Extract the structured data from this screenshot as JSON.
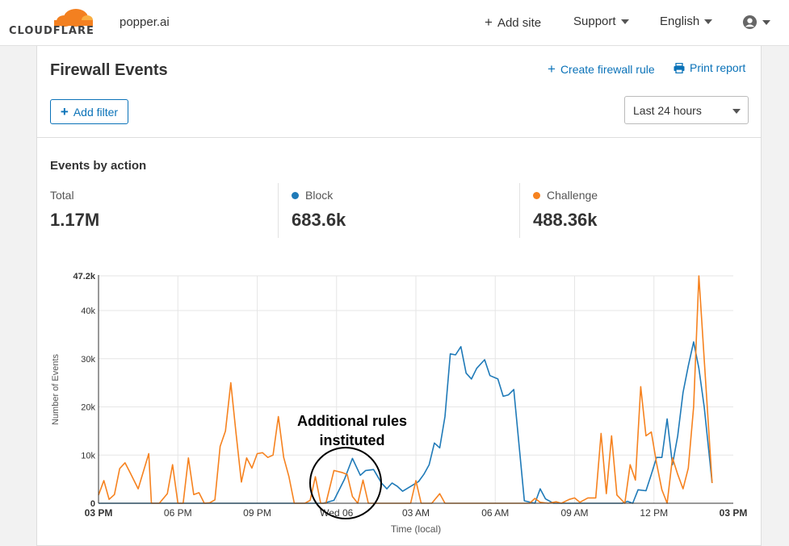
{
  "header": {
    "brand": "CLOUDFLARE",
    "site": "popper.ai",
    "add_site": "Add site",
    "support": "Support",
    "language": "English"
  },
  "page": {
    "title": "Firewall Events",
    "create_rule": "Create firewall rule",
    "print_report": "Print report",
    "add_filter": "Add filter",
    "time_range": "Last 24 hours"
  },
  "stats": {
    "section_title": "Events by action",
    "total_label": "Total",
    "total_value": "1.17M",
    "block_label": "Block",
    "block_value": "683.6k",
    "challenge_label": "Challenge",
    "challenge_value": "488.36k"
  },
  "colors": {
    "block": "#1f7ab8",
    "challenge": "#f6821f",
    "brand_orange": "#f38020"
  },
  "annotation": {
    "line1": "Additional rules",
    "line2": "instituted"
  },
  "chart_data": {
    "type": "line",
    "ylabel": "Number of Events",
    "xlabel": "Time (local)",
    "ylim": [
      0,
      47200
    ],
    "y_ticks": [
      {
        "value": 0,
        "label": "0"
      },
      {
        "value": 10000,
        "label": "10k"
      },
      {
        "value": 20000,
        "label": "20k"
      },
      {
        "value": 30000,
        "label": "30k"
      },
      {
        "value": 40000,
        "label": "40k"
      },
      {
        "value": 47200,
        "label": "47.2k"
      }
    ],
    "x_ticks": [
      "03 PM",
      "06 PM",
      "09 PM",
      "Wed 06",
      "03 AM",
      "06 AM",
      "09 AM",
      "12 PM",
      "03 PM"
    ],
    "series": [
      {
        "name": "Block",
        "points": [
          [
            0,
            0
          ],
          [
            3,
            0
          ],
          [
            6,
            0
          ],
          [
            8.5,
            0
          ],
          [
            8.9,
            600
          ],
          [
            9.3,
            5000
          ],
          [
            9.6,
            9300
          ],
          [
            9.9,
            5800
          ],
          [
            10.1,
            6800
          ],
          [
            10.4,
            7000
          ],
          [
            10.7,
            4200
          ],
          [
            10.9,
            3000
          ],
          [
            11.1,
            4200
          ],
          [
            11.3,
            3500
          ],
          [
            11.5,
            2500
          ],
          [
            11.8,
            3500
          ],
          [
            12.1,
            4500
          ],
          [
            12.3,
            6000
          ],
          [
            12.5,
            8000
          ],
          [
            12.7,
            12500
          ],
          [
            12.9,
            11500
          ],
          [
            13.1,
            18000
          ],
          [
            13.3,
            31000
          ],
          [
            13.5,
            30800
          ],
          [
            13.7,
            32500
          ],
          [
            13.9,
            27000
          ],
          [
            14.1,
            25800
          ],
          [
            14.3,
            28000
          ],
          [
            14.6,
            29800
          ],
          [
            14.8,
            26500
          ],
          [
            15.1,
            25800
          ],
          [
            15.3,
            22200
          ],
          [
            15.5,
            22500
          ],
          [
            15.7,
            23600
          ],
          [
            16.1,
            500
          ],
          [
            16.5,
            0
          ],
          [
            16.7,
            3000
          ],
          [
            16.9,
            900
          ],
          [
            17.2,
            0
          ],
          [
            19.8,
            0
          ],
          [
            20.0,
            400
          ],
          [
            20.2,
            0
          ],
          [
            20.4,
            2800
          ],
          [
            20.7,
            2600
          ],
          [
            20.9,
            6000
          ],
          [
            21.1,
            9500
          ],
          [
            21.3,
            9500
          ],
          [
            21.5,
            17500
          ],
          [
            21.7,
            8000
          ],
          [
            21.9,
            14000
          ],
          [
            22.1,
            23000
          ],
          [
            22.3,
            28500
          ],
          [
            22.5,
            33500
          ],
          [
            22.7,
            28000
          ],
          [
            22.9,
            20000
          ],
          [
            23.2,
            4200
          ]
        ]
      },
      {
        "name": "Challenge",
        "points": [
          [
            0,
            1700
          ],
          [
            0.2,
            4700
          ],
          [
            0.4,
            800
          ],
          [
            0.6,
            1800
          ],
          [
            0.8,
            7200
          ],
          [
            1.0,
            8400
          ],
          [
            1.2,
            6300
          ],
          [
            1.5,
            3000
          ],
          [
            1.9,
            10300
          ],
          [
            2.0,
            0
          ],
          [
            2.3,
            0
          ],
          [
            2.6,
            2000
          ],
          [
            2.8,
            8000
          ],
          [
            3.0,
            0
          ],
          [
            3.2,
            0
          ],
          [
            3.4,
            9400
          ],
          [
            3.6,
            1800
          ],
          [
            3.8,
            2200
          ],
          [
            4.0,
            0
          ],
          [
            4.2,
            100
          ],
          [
            4.4,
            700
          ],
          [
            4.6,
            11800
          ],
          [
            4.8,
            15000
          ],
          [
            5.0,
            25000
          ],
          [
            5.2,
            14500
          ],
          [
            5.4,
            4400
          ],
          [
            5.6,
            9400
          ],
          [
            5.8,
            7300
          ],
          [
            6.0,
            10300
          ],
          [
            6.2,
            10500
          ],
          [
            6.4,
            9500
          ],
          [
            6.6,
            10000
          ],
          [
            6.8,
            18000
          ],
          [
            7.0,
            9500
          ],
          [
            7.2,
            5500
          ],
          [
            7.4,
            0
          ],
          [
            7.8,
            0
          ],
          [
            8.0,
            600
          ],
          [
            8.2,
            5500
          ],
          [
            8.4,
            0
          ],
          [
            8.6,
            0
          ],
          [
            8.9,
            6800
          ],
          [
            9.2,
            6400
          ],
          [
            9.4,
            6000
          ],
          [
            9.6,
            1400
          ],
          [
            9.8,
            0
          ],
          [
            10.0,
            4800
          ],
          [
            10.2,
            0
          ],
          [
            10.4,
            0
          ],
          [
            10.6,
            0
          ],
          [
            10.8,
            0
          ],
          [
            11.0,
            0
          ],
          [
            11.2,
            0
          ],
          [
            11.4,
            0
          ],
          [
            11.6,
            0
          ],
          [
            11.8,
            0
          ],
          [
            12.0,
            4700
          ],
          [
            12.2,
            0
          ],
          [
            12.4,
            0
          ],
          [
            12.6,
            0
          ],
          [
            12.9,
            2000
          ],
          [
            13.1,
            0
          ],
          [
            13.3,
            0
          ],
          [
            13.5,
            0
          ],
          [
            14.0,
            0
          ],
          [
            15.0,
            0
          ],
          [
            15.8,
            0
          ],
          [
            16.0,
            0
          ],
          [
            16.3,
            0
          ],
          [
            16.5,
            1000
          ],
          [
            16.7,
            200
          ],
          [
            17.0,
            0
          ],
          [
            17.3,
            300
          ],
          [
            17.5,
            0
          ],
          [
            17.8,
            800
          ],
          [
            18.0,
            1100
          ],
          [
            18.2,
            200
          ],
          [
            18.5,
            1100
          ],
          [
            18.8,
            1100
          ],
          [
            19.0,
            14500
          ],
          [
            19.2,
            2000
          ],
          [
            19.4,
            14000
          ],
          [
            19.6,
            1700
          ],
          [
            19.9,
            0
          ],
          [
            20.1,
            8000
          ],
          [
            20.3,
            4800
          ],
          [
            20.5,
            24200
          ],
          [
            20.7,
            14000
          ],
          [
            20.9,
            14800
          ],
          [
            21.1,
            8300
          ],
          [
            21.3,
            2800
          ],
          [
            21.5,
            0
          ],
          [
            21.7,
            9400
          ],
          [
            21.9,
            6000
          ],
          [
            22.1,
            3000
          ],
          [
            22.3,
            7300
          ],
          [
            22.5,
            20000
          ],
          [
            22.7,
            47200
          ],
          [
            23.2,
            4200
          ]
        ]
      }
    ]
  }
}
